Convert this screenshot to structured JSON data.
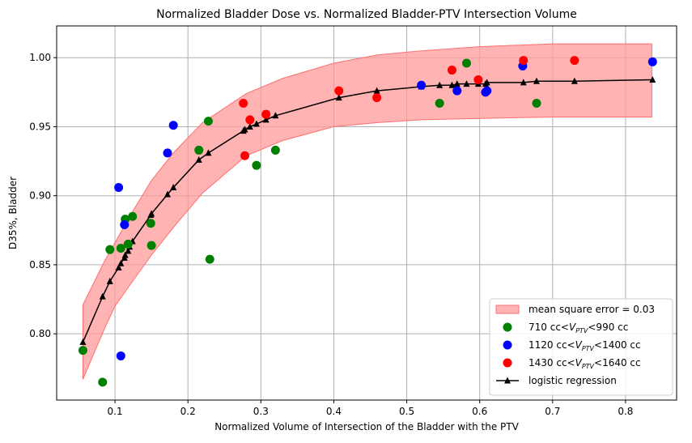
{
  "chart_data": {
    "type": "scatter",
    "title": "Normalized Bladder Dose vs. Normalized Bladder-PTV Intersection Volume",
    "xlabel": "Normalized Volume of Intersection of the Bladder with the PTV",
    "ylabel": "D35%, Bladder",
    "xlim": [
      0.02,
      0.87
    ],
    "ylim": [
      0.752,
      1.023
    ],
    "grid": true,
    "legend_position": "lower right",
    "x_ticks": [
      "0.1",
      "0.2",
      "0.3",
      "0.4",
      "0.5",
      "0.6",
      "0.7",
      "0.8"
    ],
    "x_tick_values": [
      0.1,
      0.2,
      0.3,
      0.4,
      0.5,
      0.6,
      0.7,
      0.8
    ],
    "y_ticks": [
      "0.80",
      "0.85",
      "0.90",
      "0.95",
      "1.00"
    ],
    "y_tick_values": [
      0.8,
      0.85,
      0.9,
      0.95,
      1.0
    ],
    "band": {
      "label": "mean square error = 0.03",
      "color": "#ff9a9a",
      "edge_color": "#ff6f6f",
      "x": [
        0.056,
        0.085,
        0.1,
        0.12,
        0.15,
        0.18,
        0.22,
        0.28,
        0.33,
        0.4,
        0.46,
        0.52,
        0.6,
        0.7,
        0.836
      ],
      "upper": [
        0.821,
        0.852,
        0.866,
        0.885,
        0.911,
        0.931,
        0.953,
        0.974,
        0.985,
        0.996,
        1.002,
        1.005,
        1.008,
        1.01,
        1.01
      ],
      "lower": [
        0.767,
        0.803,
        0.82,
        0.835,
        0.857,
        0.877,
        0.902,
        0.929,
        0.94,
        0.95,
        0.953,
        0.955,
        0.956,
        0.957,
        0.957
      ]
    },
    "series": [
      {
        "name": "710 cc<V_PTV<990 cc",
        "legend_prefix": "710 cc<",
        "legend_suffix": "<990 cc",
        "color": "#008000",
        "x": [
          0.056,
          0.083,
          0.093,
          0.108,
          0.114,
          0.118,
          0.124,
          0.149,
          0.15,
          0.215,
          0.228,
          0.23,
          0.294,
          0.32,
          0.545,
          0.582,
          0.678
        ],
        "y": [
          0.788,
          0.765,
          0.861,
          0.862,
          0.883,
          0.865,
          0.885,
          0.88,
          0.864,
          0.933,
          0.954,
          0.854,
          0.922,
          0.933,
          0.967,
          0.996,
          0.967
        ]
      },
      {
        "name": "1120 cc<V_PTV<1400 cc",
        "legend_prefix": "1120 cc<",
        "legend_suffix": "<1400 cc",
        "color": "#0000ff",
        "x": [
          0.105,
          0.108,
          0.113,
          0.172,
          0.18,
          0.52,
          0.569,
          0.608,
          0.61,
          0.659,
          0.837
        ],
        "y": [
          0.906,
          0.784,
          0.879,
          0.931,
          0.951,
          0.98,
          0.976,
          0.975,
          0.976,
          0.994,
          0.997
        ]
      },
      {
        "name": "1430 cc<V_PTV<1640 cc",
        "legend_prefix": "1430 cc<",
        "legend_suffix": "<1640 cc",
        "color": "#ff0000",
        "x": [
          0.276,
          0.278,
          0.285,
          0.307,
          0.407,
          0.459,
          0.562,
          0.598,
          0.66,
          0.73
        ],
        "y": [
          0.967,
          0.929,
          0.955,
          0.959,
          0.976,
          0.971,
          0.991,
          0.984,
          0.998,
          0.998
        ]
      }
    ],
    "regression": {
      "name": "logistic regression",
      "color": "#000000",
      "x": [
        0.056,
        0.083,
        0.093,
        0.105,
        0.108,
        0.113,
        0.114,
        0.118,
        0.12,
        0.124,
        0.149,
        0.15,
        0.172,
        0.18,
        0.215,
        0.228,
        0.276,
        0.278,
        0.285,
        0.294,
        0.307,
        0.32,
        0.407,
        0.459,
        0.52,
        0.545,
        0.562,
        0.569,
        0.582,
        0.598,
        0.608,
        0.61,
        0.66,
        0.678,
        0.73,
        0.837
      ],
      "y": [
        0.794,
        0.827,
        0.838,
        0.848,
        0.851,
        0.855,
        0.857,
        0.86,
        0.863,
        0.867,
        0.886,
        0.887,
        0.901,
        0.906,
        0.926,
        0.931,
        0.947,
        0.948,
        0.95,
        0.952,
        0.955,
        0.958,
        0.971,
        0.976,
        0.979,
        0.98,
        0.98,
        0.981,
        0.981,
        0.981,
        0.981,
        0.982,
        0.982,
        0.983,
        0.983,
        0.984
      ]
    }
  }
}
